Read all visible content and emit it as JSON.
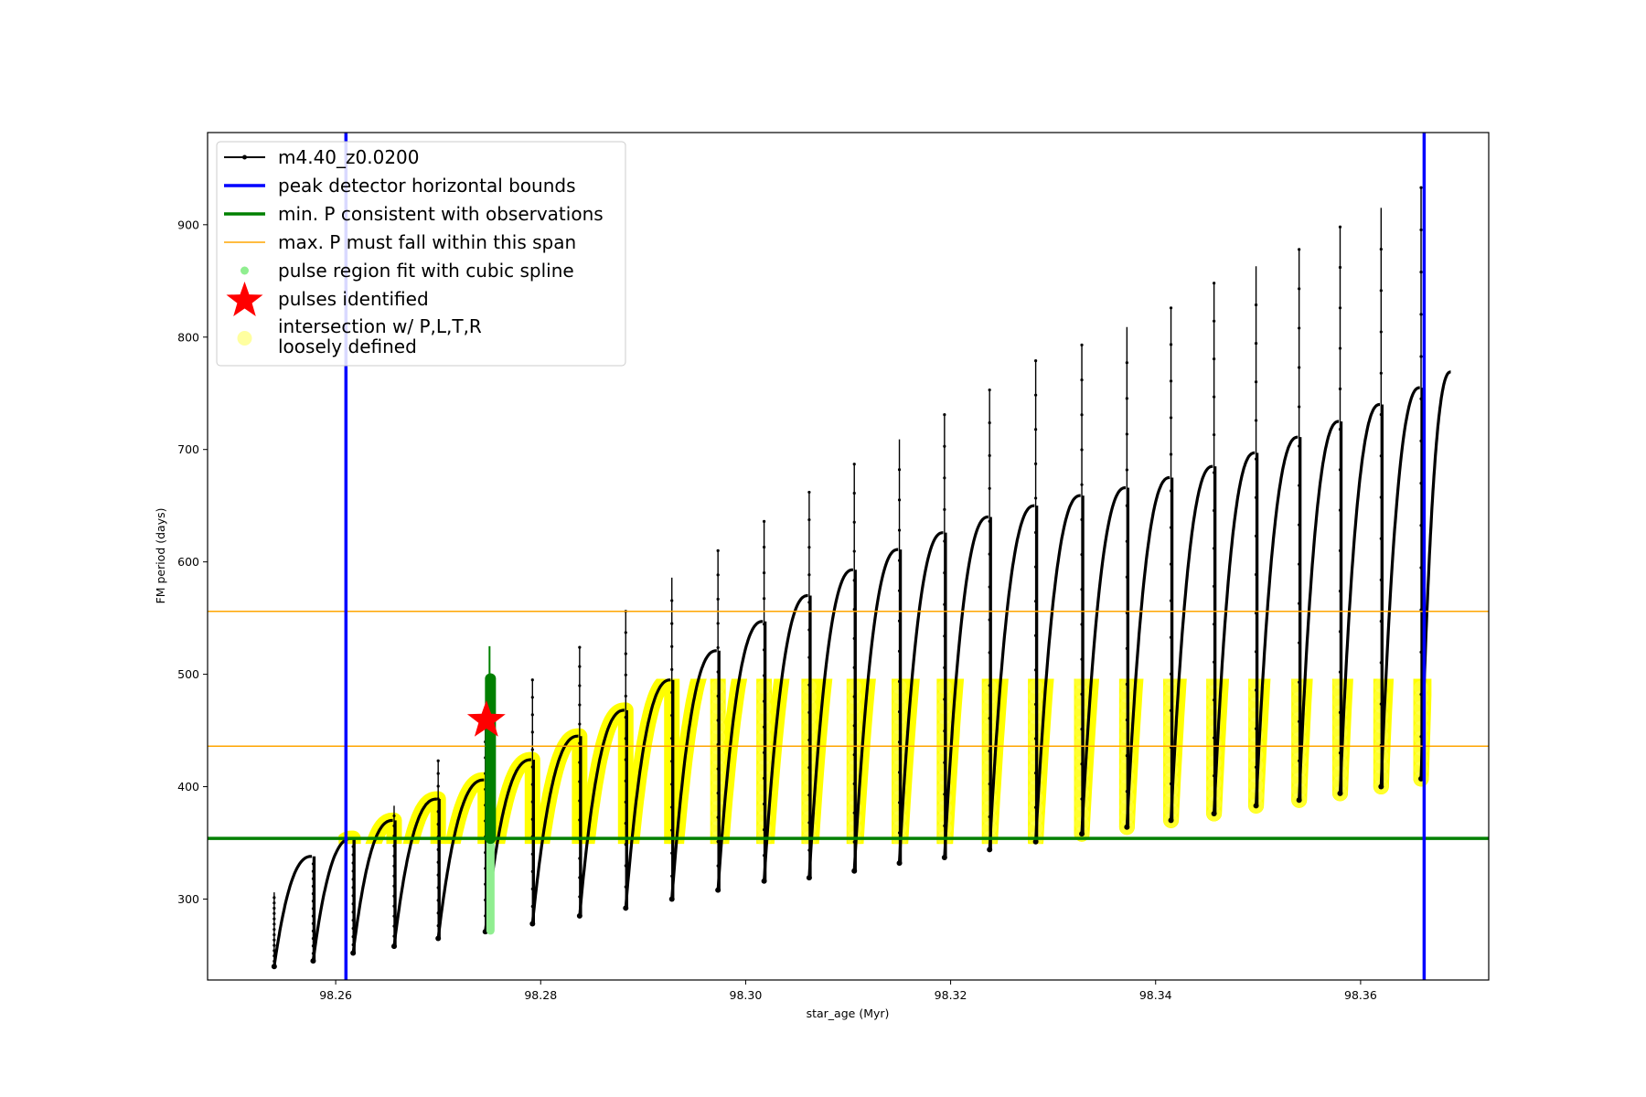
{
  "chart_data": {
    "type": "scatter",
    "xlabel": "star_age (Myr)",
    "ylabel": "FM period (days)",
    "xlim": [
      98.2475,
      98.3725
    ],
    "ylim": [
      228,
      982
    ],
    "xticks": [
      98.26,
      98.28,
      98.3,
      98.32,
      98.34,
      98.36
    ],
    "xtick_labels": [
      "98.26",
      "98.28",
      "98.30",
      "98.32",
      "98.34",
      "98.36"
    ],
    "yticks": [
      300,
      400,
      500,
      600,
      700,
      800,
      900
    ],
    "ytick_labels": [
      "300",
      "400",
      "500",
      "600",
      "700",
      "800",
      "900"
    ],
    "legend_position": "top-left",
    "legend": [
      {
        "label": "m4.40_z0.0200",
        "color": "#000000",
        "marker": "line-dot"
      },
      {
        "label": "peak detector horizontal bounds",
        "color": "#0000ff",
        "marker": "line-thick"
      },
      {
        "label": "min. P consistent with observations",
        "color": "#008000",
        "marker": "line-thick"
      },
      {
        "label": "max. P must fall within this span",
        "color": "#ffa500",
        "marker": "line-thin"
      },
      {
        "label": "pulse region fit with cubic spline",
        "color": "#90ee90",
        "marker": "dot"
      },
      {
        "label": "pulses identified",
        "color": "#ff0000",
        "marker": "star"
      },
      {
        "label_lines": [
          "intersection w/ P,L,T,R",
          "loosely defined"
        ],
        "color": "#ffffa0",
        "marker": "circle"
      }
    ],
    "series": [
      {
        "name": "m4.40_z0.0200",
        "color": "#000000",
        "start_age": 98.254,
        "end_age": 98.3688,
        "end_period": 769,
        "pulses": [
          {
            "age": 98.254,
            "floor": 240,
            "plateau": 240,
            "peak": 306
          },
          {
            "age": 98.2578,
            "floor": 245,
            "plateau": 338,
            "peak": 338
          },
          {
            "age": 98.2617,
            "floor": 252,
            "plateau": 354,
            "peak": 354
          },
          {
            "age": 98.2657,
            "floor": 258,
            "plateau": 370,
            "peak": 383
          },
          {
            "age": 98.27,
            "floor": 265,
            "plateau": 389,
            "peak": 423
          },
          {
            "age": 98.2746,
            "floor": 271,
            "plateau": 406,
            "peak": 468
          },
          {
            "age": 98.2792,
            "floor": 278,
            "plateau": 424,
            "peak": 495
          },
          {
            "age": 98.2838,
            "floor": 285,
            "plateau": 445,
            "peak": 524
          },
          {
            "age": 98.2883,
            "floor": 292,
            "plateau": 468,
            "peak": 556
          },
          {
            "age": 98.2928,
            "floor": 300,
            "plateau": 495,
            "peak": 586
          },
          {
            "age": 98.2973,
            "floor": 308,
            "plateau": 521,
            "peak": 610
          },
          {
            "age": 98.3018,
            "floor": 316,
            "plateau": 547,
            "peak": 636
          },
          {
            "age": 98.3062,
            "floor": 319,
            "plateau": 570,
            "peak": 662
          },
          {
            "age": 98.3106,
            "floor": 325,
            "plateau": 593,
            "peak": 687
          },
          {
            "age": 98.315,
            "floor": 332,
            "plateau": 611,
            "peak": 709
          },
          {
            "age": 98.3194,
            "floor": 337,
            "plateau": 626,
            "peak": 731
          },
          {
            "age": 98.3238,
            "floor": 344,
            "plateau": 640,
            "peak": 753
          },
          {
            "age": 98.3283,
            "floor": 351,
            "plateau": 650,
            "peak": 779
          },
          {
            "age": 98.3328,
            "floor": 358,
            "plateau": 659,
            "peak": 793
          },
          {
            "age": 98.3372,
            "floor": 364,
            "plateau": 666,
            "peak": 809
          },
          {
            "age": 98.3415,
            "floor": 370,
            "plateau": 675,
            "peak": 826
          },
          {
            "age": 98.3457,
            "floor": 376,
            "plateau": 685,
            "peak": 848
          },
          {
            "age": 98.3498,
            "floor": 383,
            "plateau": 697,
            "peak": 863
          },
          {
            "age": 98.354,
            "floor": 388,
            "plateau": 711,
            "peak": 878
          },
          {
            "age": 98.358,
            "floor": 394,
            "plateau": 725,
            "peak": 898
          },
          {
            "age": 98.362,
            "floor": 400,
            "plateau": 740,
            "peak": 915
          },
          {
            "age": 98.3659,
            "floor": 407,
            "plateau": 755,
            "peak": 933
          }
        ]
      },
      {
        "name": "peak detector horizontal bounds",
        "type": "vline",
        "color": "#0000ff",
        "x": [
          98.261,
          98.3662
        ]
      },
      {
        "name": "min. P consistent with observations",
        "type": "hline",
        "color": "#008000",
        "y": 354
      },
      {
        "name": "max. P must fall within this span",
        "type": "hline",
        "color": "#ffa500",
        "y": [
          436,
          556
        ]
      },
      {
        "name": "pulse region fit with cubic spline",
        "color": "#90ee90",
        "x": 98.2751,
        "y_range": [
          272,
          496
        ]
      },
      {
        "name": "pulses identified",
        "type": "marker",
        "color": "#ff0000",
        "x": 98.2747,
        "y": 459
      },
      {
        "name": "intersection w/ P,L,T,R loosely defined",
        "color": "#ffff00",
        "y_clip": [
          354,
          496
        ]
      }
    ]
  }
}
